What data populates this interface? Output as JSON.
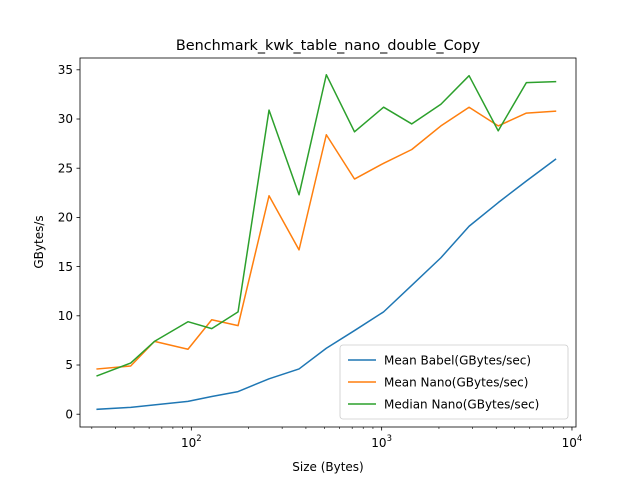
{
  "chart_data": {
    "type": "line",
    "title": "Benchmark_kwk_table_nano_double_Copy",
    "xlabel": "Size (Bytes)",
    "ylabel": "GBytes/s",
    "xscale": "log",
    "xlim": [
      26,
      10500
    ],
    "ylim": [
      -1.3,
      36.2
    ],
    "x_ticks": [
      100,
      1000,
      10000
    ],
    "x_tick_labels": [
      {
        "base": "10",
        "exp": "2"
      },
      {
        "base": "10",
        "exp": "3"
      },
      {
        "base": "10",
        "exp": "4"
      }
    ],
    "y_ticks": [
      0,
      5,
      10,
      15,
      20,
      25,
      30,
      35
    ],
    "y_tick_labels": [
      "0",
      "5",
      "10",
      "15",
      "20",
      "25",
      "30",
      "35"
    ],
    "grid": false,
    "legend_position": "lower right",
    "x": [
      32,
      48,
      64,
      96,
      128,
      176,
      256,
      368,
      512,
      720,
      1024,
      1440,
      2048,
      2880,
      4096,
      5760,
      8192
    ],
    "series": [
      {
        "name": "Mean Babel(GBytes/sec)",
        "color": "#1f77b4",
        "values": [
          0.5,
          0.7,
          0.95,
          1.3,
          1.8,
          2.3,
          3.6,
          4.6,
          6.7,
          8.5,
          10.4,
          13.1,
          15.9,
          19.1,
          21.5,
          23.7,
          25.9
        ]
      },
      {
        "name": "Mean Nano(GBytes/sec)",
        "color": "#ff7f0e",
        "values": [
          4.6,
          4.9,
          7.4,
          6.6,
          9.6,
          9.0,
          22.2,
          16.7,
          28.4,
          23.9,
          25.5,
          26.9,
          29.3,
          31.2,
          29.3,
          30.6,
          30.8
        ]
      },
      {
        "name": "Median Nano(GBytes/sec)",
        "color": "#2ca02c",
        "values": [
          3.9,
          5.2,
          7.4,
          9.4,
          8.7,
          10.4,
          30.9,
          22.3,
          34.5,
          28.7,
          31.2,
          29.5,
          31.5,
          34.4,
          28.8,
          33.7,
          33.8
        ]
      }
    ]
  }
}
